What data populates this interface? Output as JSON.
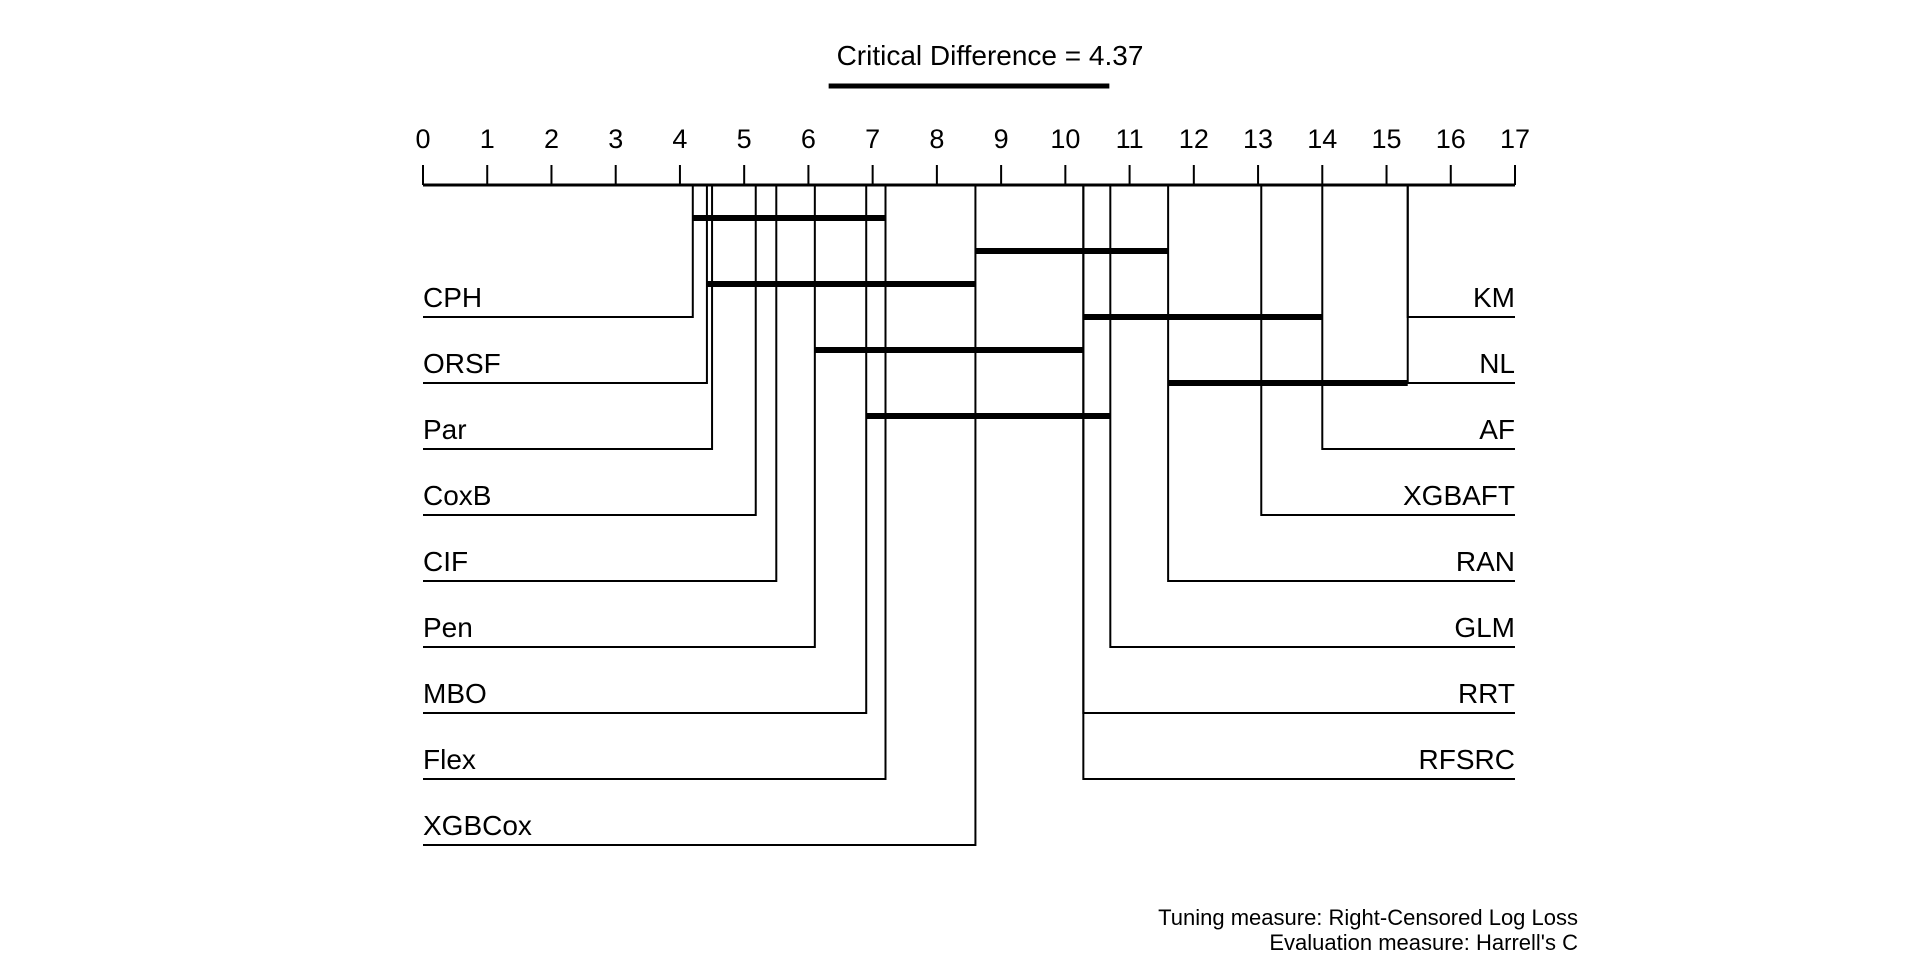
{
  "chart_data": {
    "type": "critical-difference",
    "title": "Critical Difference = 4.37",
    "critical_difference": 4.37,
    "xlim": [
      0,
      17
    ],
    "tick_labels": [
      "0",
      "1",
      "2",
      "3",
      "4",
      "5",
      "6",
      "7",
      "8",
      "9",
      "10",
      "11",
      "12",
      "13",
      "14",
      "15",
      "16",
      "17"
    ],
    "left_methods": [
      {
        "name": "CPH",
        "rank": 4.2
      },
      {
        "name": "ORSF",
        "rank": 4.42
      },
      {
        "name": "Par",
        "rank": 4.5
      },
      {
        "name": "CoxB",
        "rank": 5.18
      },
      {
        "name": "CIF",
        "rank": 5.5
      },
      {
        "name": "Pen",
        "rank": 6.1
      },
      {
        "name": "MBO",
        "rank": 6.9
      },
      {
        "name": "Flex",
        "rank": 7.2
      },
      {
        "name": "XGBCox",
        "rank": 8.6
      }
    ],
    "right_methods": [
      {
        "name": "KM",
        "rank": 15.33
      },
      {
        "name": "NL",
        "rank": 15.33
      },
      {
        "name": "AF",
        "rank": 14.0
      },
      {
        "name": "XGBAFT",
        "rank": 13.05
      },
      {
        "name": "RAN",
        "rank": 11.6
      },
      {
        "name": "GLM",
        "rank": 10.7
      },
      {
        "name": "RRT",
        "rank": 10.28
      },
      {
        "name": "RFSRC",
        "rank": 10.28
      }
    ],
    "cliques": [
      [
        4.2,
        7.2
      ],
      [
        8.6,
        11.6
      ],
      [
        4.42,
        8.6
      ],
      [
        10.28,
        14.0
      ],
      [
        6.1,
        10.28
      ],
      [
        11.6,
        15.33
      ],
      [
        6.9,
        10.7
      ]
    ]
  },
  "notes": {
    "tuning": "Tuning measure: Right-Censored Log Loss",
    "evaluation": "Evaluation measure: Harrell's C"
  }
}
